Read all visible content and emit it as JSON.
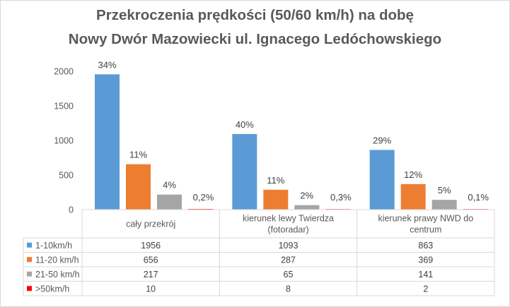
{
  "chart_data": {
    "type": "bar",
    "title": [
      "Przekroczenia prędkości (50/60 km/h) na dobę",
      "Nowy Dwór Mazowiecki ul. Ignacego Ledóchowskiego"
    ],
    "categories": [
      "cały przekrój",
      "kierunek lewy Twierdza (fotoradar)",
      "kierunek prawy NWD do centrum"
    ],
    "category_lines": [
      [
        "cały przekrój"
      ],
      [
        "kierunek lewy Twierdza",
        "(fotoradar)"
      ],
      [
        "kierunek prawy NWD do",
        "centrum"
      ]
    ],
    "series": [
      {
        "name": "1-10km/h",
        "color": "#5b9bd5",
        "values": [
          1956,
          1093,
          863
        ],
        "labels": [
          "34%",
          "40%",
          "29%"
        ]
      },
      {
        "name": "11-20 km/h",
        "color": "#ed7d31",
        "values": [
          656,
          287,
          369
        ],
        "labels": [
          "11%",
          "11%",
          "12%"
        ]
      },
      {
        "name": "21-50 km/h",
        "color": "#a5a5a5",
        "values": [
          217,
          65,
          141
        ],
        "labels": [
          "4%",
          "2%",
          "5%"
        ]
      },
      {
        "name": ">50km/h",
        "color": "#ff0000",
        "values": [
          10,
          8,
          2
        ],
        "labels": [
          "0,2%",
          "0,3%",
          "0,1%"
        ]
      }
    ],
    "y_ticks": [
      0,
      500,
      1000,
      1500,
      2000
    ],
    "ylim": [
      0,
      2000
    ],
    "xlabel": "",
    "ylabel": "",
    "grid": false,
    "legend": "data-table"
  }
}
